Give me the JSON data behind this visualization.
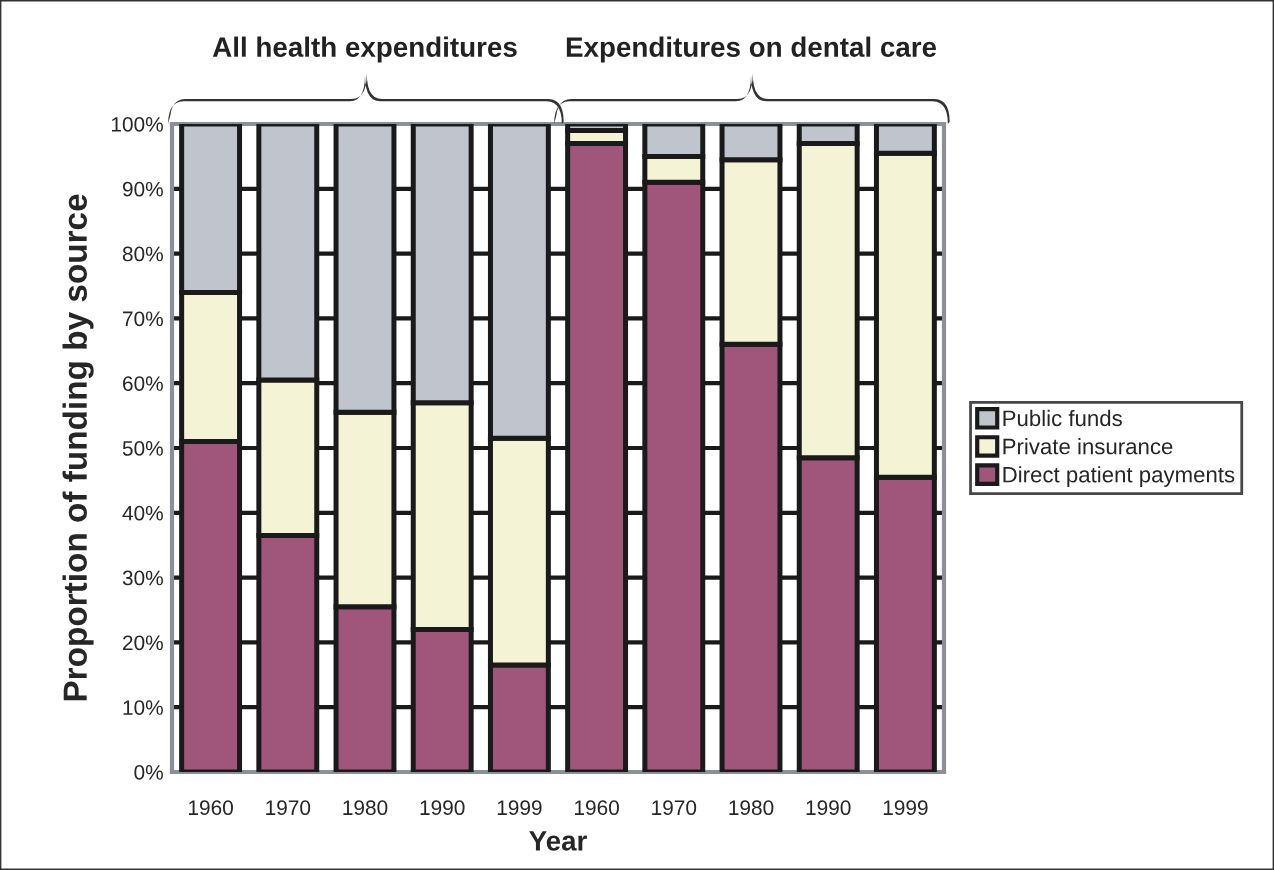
{
  "chart_data": {
    "type": "bar",
    "stacked": true,
    "xlabel": "Year",
    "ylabel": "Proportion of funding by source",
    "categories": [
      "1960",
      "1970",
      "1980",
      "1990",
      "1999",
      "1960",
      "1970",
      "1980",
      "1990",
      "1999"
    ],
    "series": [
      {
        "name": "Direct patient payments",
        "color": "#a0557a",
        "values": [
          51,
          36.5,
          25.5,
          22,
          16.5,
          97,
          91,
          66,
          48.5,
          45.5
        ]
      },
      {
        "name": "Private insurance",
        "color": "#f5f3d5",
        "values": [
          23,
          24,
          30,
          35,
          35,
          2,
          4,
          28.5,
          48.5,
          50
        ]
      },
      {
        "name": "Public funds",
        "color": "#c0c4cc",
        "values": [
          26,
          39.5,
          44.5,
          43,
          48.5,
          1,
          5,
          5.5,
          3,
          4.5
        ]
      }
    ],
    "ylim": [
      0,
      100
    ],
    "yticks": [
      {
        "value": 0,
        "label": "0%"
      },
      {
        "value": 10,
        "label": "10%"
      },
      {
        "value": 20,
        "label": "20%"
      },
      {
        "value": 30,
        "label": "30%"
      },
      {
        "value": 40,
        "label": "40%"
      },
      {
        "value": 50,
        "label": "50%"
      },
      {
        "value": 60,
        "label": "60%"
      },
      {
        "value": 70,
        "label": "70%"
      },
      {
        "value": 80,
        "label": "80%"
      },
      {
        "value": 90,
        "label": "90%"
      },
      {
        "value": 100,
        "label": "100%"
      }
    ],
    "annotations": [
      "All health expenditures",
      "Expenditures on dental care"
    ],
    "grid": "y",
    "legend": "right"
  }
}
